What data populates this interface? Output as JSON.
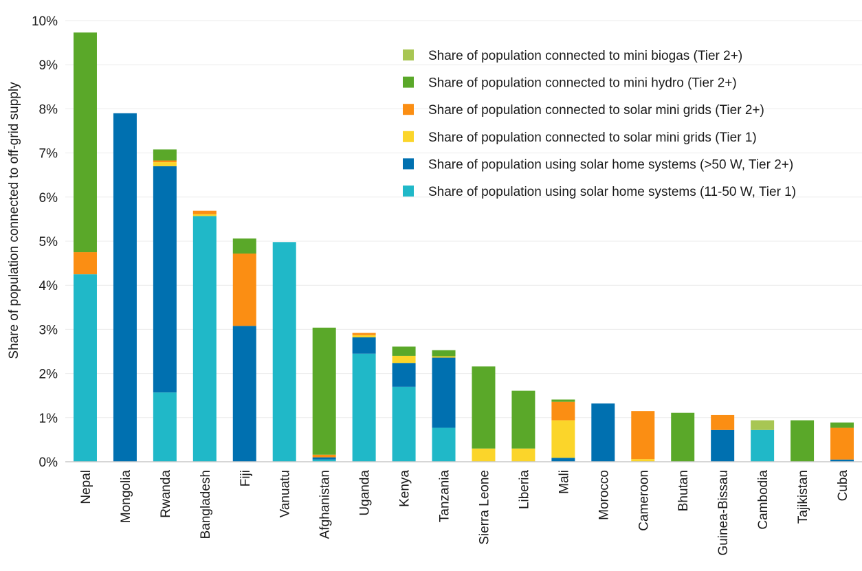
{
  "chart_data": {
    "type": "bar",
    "stacked": true,
    "title": "",
    "xlabel": "",
    "ylabel": "Share of population connected to off-grid supply",
    "ylim": [
      0,
      10
    ],
    "y_unit": "%",
    "y_ticks": [
      "0%",
      "1%",
      "2%",
      "3%",
      "4%",
      "5%",
      "6%",
      "7%",
      "8%",
      "9%",
      "10%"
    ],
    "grid": true,
    "legend_position": "top-right",
    "categories": [
      "Nepal",
      "Mongolia",
      "Rwanda",
      "Bangladesh",
      "Fiji",
      "Vanuatu",
      "Afghanistan",
      "Uganda",
      "Kenya",
      "Tanzania",
      "Sierra Leone",
      "Liberia",
      "Mali",
      "Morocco",
      "Cameroon",
      "Bhutan",
      "Guinea-Bissau",
      "Cambodia",
      "Tajikistan",
      "Cuba"
    ],
    "series": [
      {
        "name": "Share of population using solar home systems (11-50 W, Tier 1)",
        "color": "#20b8c8",
        "values": [
          4.25,
          0.0,
          1.57,
          5.57,
          0.0,
          4.98,
          0.05,
          2.45,
          1.7,
          0.77,
          0.0,
          0.0,
          0.0,
          0.0,
          0.0,
          0.0,
          0.0,
          0.72,
          0.0,
          0.0
        ]
      },
      {
        "name": "Share of population using solar home systems (>50 W, Tier 2+)",
        "color": "#0070b0",
        "values": [
          0.0,
          7.9,
          5.13,
          0.0,
          3.08,
          0.0,
          0.05,
          0.37,
          0.54,
          1.59,
          0.0,
          0.0,
          0.09,
          1.32,
          0.0,
          0.0,
          0.72,
          0.0,
          0.0,
          0.05
        ]
      },
      {
        "name": "Share of population connected to solar mini grids (Tier 1)",
        "color": "#fbd52a",
        "values": [
          0.0,
          0.0,
          0.09,
          0.04,
          0.0,
          0.0,
          0.0,
          0.05,
          0.16,
          0.03,
          0.3,
          0.3,
          0.85,
          0.0,
          0.06,
          0.0,
          0.0,
          0.0,
          0.0,
          0.0
        ]
      },
      {
        "name": "Share of population connected to solar mini grids (Tier 2+)",
        "color": "#fb8e13",
        "values": [
          0.5,
          0.0,
          0.04,
          0.08,
          1.64,
          0.0,
          0.06,
          0.05,
          0.0,
          0.0,
          0.0,
          0.0,
          0.42,
          0.0,
          1.09,
          0.0,
          0.34,
          0.0,
          0.0,
          0.72
        ]
      },
      {
        "name": "Share of population connected to mini hydro (Tier 2+)",
        "color": "#5aa829",
        "values": [
          4.98,
          0.0,
          0.25,
          0.0,
          0.34,
          0.0,
          2.88,
          0.0,
          0.21,
          0.14,
          1.86,
          1.31,
          0.05,
          0.0,
          0.0,
          1.11,
          0.0,
          0.0,
          0.94,
          0.12
        ]
      },
      {
        "name": "Share of population connected to mini biogas (Tier 2+)",
        "color": "#a8c653",
        "values": [
          0.0,
          0.0,
          0.0,
          0.0,
          0.0,
          0.0,
          0.0,
          0.0,
          0.0,
          0.0,
          0.0,
          0.0,
          0.0,
          0.0,
          0.0,
          0.0,
          0.0,
          0.22,
          0.0,
          0.0
        ]
      }
    ],
    "legend_order": [
      5,
      4,
      3,
      2,
      1,
      0
    ]
  }
}
